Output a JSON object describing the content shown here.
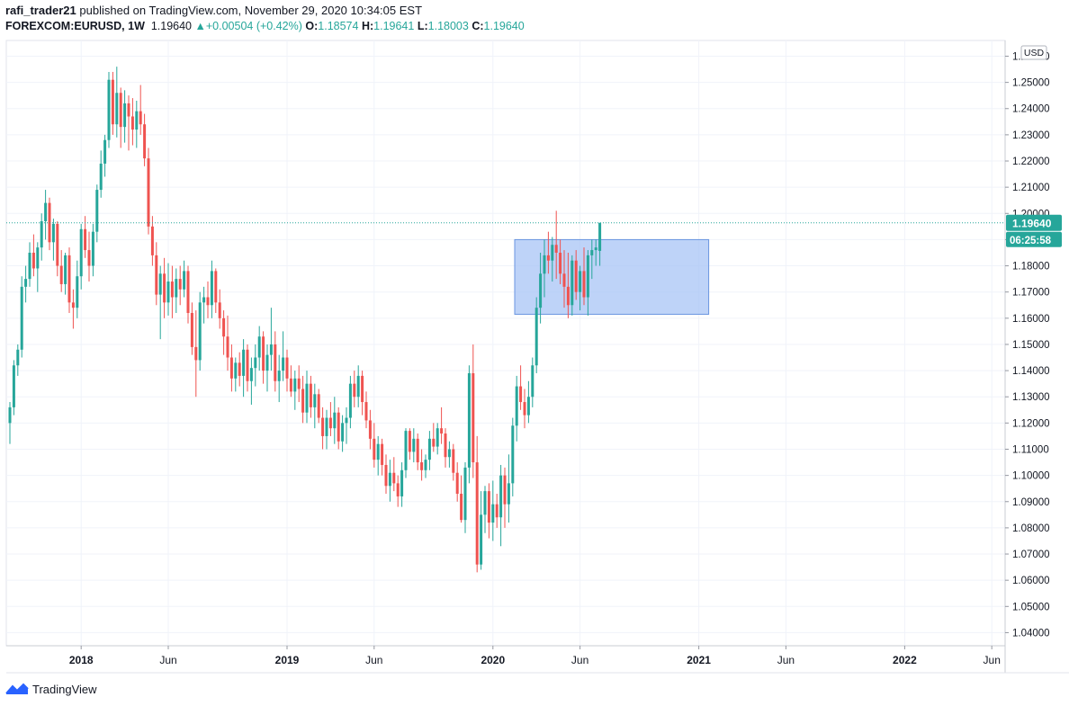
{
  "header": {
    "username": "rafi_trader21",
    "published_text": "published on TradingView.com, November 29, 2020 10:34:05 EST",
    "symbol": "FOREXCOM:EURUSD, 1W",
    "last_price": "1.19640",
    "change": "+0.00504 (+0.42%)",
    "o_label": "O:",
    "o_value": "1.18574",
    "h_label": "H:",
    "h_value": "1.19641",
    "l_label": "L:",
    "l_value": "1.18003",
    "c_label": "C:",
    "c_value": "1.19640"
  },
  "footer": {
    "brand": "TradingView"
  },
  "colors": {
    "up": "#26a69a",
    "down": "#ef5350",
    "zone": "#a8c4f5",
    "zone_border": "#6a95e0",
    "price_tag": "#26a69a"
  },
  "chart_data": {
    "type": "candlestick",
    "currency_label": "USD",
    "last_price_tag": "1.19640",
    "countdown_tag": "06:25:58",
    "ylim": [
      1.035,
      1.266
    ],
    "y_ticks": [
      "1.26000",
      "1.25000",
      "1.24000",
      "1.23000",
      "1.22000",
      "1.21000",
      "1.20000",
      "1.19000",
      "1.18000",
      "1.17000",
      "1.16000",
      "1.15000",
      "1.14000",
      "1.13000",
      "1.12000",
      "1.11000",
      "1.10000",
      "1.09000",
      "1.08000",
      "1.07000",
      "1.06000",
      "1.05000",
      "1.04000"
    ],
    "x_ticks": [
      {
        "label": "2018",
        "bold": true,
        "week": 18
      },
      {
        "label": "Jun",
        "bold": false,
        "week": 40
      },
      {
        "label": "2019",
        "bold": true,
        "week": 70
      },
      {
        "label": "Jun",
        "bold": false,
        "week": 92
      },
      {
        "label": "2020",
        "bold": true,
        "week": 122
      },
      {
        "label": "Jun",
        "bold": false,
        "week": 144
      },
      {
        "label": "2021",
        "bold": true,
        "week": 174
      },
      {
        "label": "Jun",
        "bold": false,
        "week": 196
      },
      {
        "label": "2022",
        "bold": true,
        "week": 226
      },
      {
        "label": "Jun",
        "bold": false,
        "week": 248
      }
    ],
    "zone": {
      "week_start": 127.5,
      "week_end": 176.5,
      "price_high": 1.19,
      "price_low": 1.1615
    },
    "candles": [
      [
        1.12,
        1.128,
        1.112,
        1.126
      ],
      [
        1.126,
        1.144,
        1.123,
        1.142
      ],
      [
        1.142,
        1.15,
        1.138,
        1.148
      ],
      [
        1.148,
        1.176,
        1.145,
        1.172
      ],
      [
        1.172,
        1.18,
        1.166,
        1.175
      ],
      [
        1.175,
        1.189,
        1.172,
        1.185
      ],
      [
        1.185,
        1.192,
        1.176,
        1.179
      ],
      [
        1.179,
        1.189,
        1.17,
        1.187
      ],
      [
        1.187,
        1.2,
        1.182,
        1.197
      ],
      [
        1.197,
        1.209,
        1.19,
        1.204
      ],
      [
        1.204,
        1.206,
        1.186,
        1.189
      ],
      [
        1.189,
        1.198,
        1.182,
        1.196
      ],
      [
        1.196,
        1.197,
        1.176,
        1.18
      ],
      [
        1.18,
        1.186,
        1.17,
        1.173
      ],
      [
        1.173,
        1.185,
        1.169,
        1.184
      ],
      [
        1.184,
        1.187,
        1.162,
        1.166
      ],
      [
        1.166,
        1.171,
        1.156,
        1.164
      ],
      [
        1.164,
        1.182,
        1.16,
        1.176
      ],
      [
        1.176,
        1.196,
        1.171,
        1.194
      ],
      [
        1.194,
        1.199,
        1.183,
        1.186
      ],
      [
        1.186,
        1.193,
        1.174,
        1.18
      ],
      [
        1.18,
        1.196,
        1.176,
        1.193
      ],
      [
        1.193,
        1.211,
        1.189,
        1.209
      ],
      [
        1.209,
        1.224,
        1.206,
        1.219
      ],
      [
        1.219,
        1.23,
        1.214,
        1.228
      ],
      [
        1.228,
        1.254,
        1.225,
        1.251
      ],
      [
        1.251,
        1.254,
        1.23,
        1.234
      ],
      [
        1.234,
        1.256,
        1.229,
        1.246
      ],
      [
        1.246,
        1.248,
        1.225,
        1.233
      ],
      [
        1.233,
        1.247,
        1.227,
        1.242
      ],
      [
        1.242,
        1.245,
        1.224,
        1.237
      ],
      [
        1.237,
        1.244,
        1.226,
        1.232
      ],
      [
        1.232,
        1.243,
        1.225,
        1.239
      ],
      [
        1.239,
        1.249,
        1.23,
        1.234
      ],
      [
        1.234,
        1.238,
        1.218,
        1.221
      ],
      [
        1.221,
        1.225,
        1.192,
        1.195
      ],
      [
        1.195,
        1.199,
        1.18,
        1.184
      ],
      [
        1.184,
        1.189,
        1.165,
        1.169
      ],
      [
        1.169,
        1.18,
        1.152,
        1.177
      ],
      [
        1.177,
        1.183,
        1.16,
        1.166
      ],
      [
        1.166,
        1.181,
        1.161,
        1.174
      ],
      [
        1.174,
        1.18,
        1.16,
        1.168
      ],
      [
        1.168,
        1.179,
        1.162,
        1.175
      ],
      [
        1.175,
        1.18,
        1.165,
        1.171
      ],
      [
        1.171,
        1.182,
        1.168,
        1.178
      ],
      [
        1.178,
        1.18,
        1.158,
        1.162
      ],
      [
        1.162,
        1.166,
        1.146,
        1.149
      ],
      [
        1.149,
        1.163,
        1.13,
        1.144
      ],
      [
        1.144,
        1.17,
        1.14,
        1.166
      ],
      [
        1.166,
        1.172,
        1.158,
        1.168
      ],
      [
        1.168,
        1.174,
        1.16,
        1.165
      ],
      [
        1.165,
        1.182,
        1.16,
        1.178
      ],
      [
        1.178,
        1.179,
        1.162,
        1.166
      ],
      [
        1.166,
        1.171,
        1.156,
        1.16
      ],
      [
        1.16,
        1.163,
        1.146,
        1.153
      ],
      [
        1.153,
        1.161,
        1.14,
        1.145
      ],
      [
        1.145,
        1.15,
        1.132,
        1.137
      ],
      [
        1.137,
        1.145,
        1.132,
        1.143
      ],
      [
        1.143,
        1.147,
        1.134,
        1.138
      ],
      [
        1.138,
        1.152,
        1.13,
        1.148
      ],
      [
        1.148,
        1.15,
        1.132,
        1.136
      ],
      [
        1.136,
        1.145,
        1.127,
        1.141
      ],
      [
        1.141,
        1.15,
        1.134,
        1.145
      ],
      [
        1.145,
        1.157,
        1.14,
        1.153
      ],
      [
        1.153,
        1.155,
        1.135,
        1.14
      ],
      [
        1.14,
        1.15,
        1.132,
        1.146
      ],
      [
        1.146,
        1.164,
        1.14,
        1.15
      ],
      [
        1.15,
        1.155,
        1.132,
        1.136
      ],
      [
        1.136,
        1.146,
        1.128,
        1.14
      ],
      [
        1.14,
        1.155,
        1.136,
        1.145
      ],
      [
        1.145,
        1.148,
        1.132,
        1.137
      ],
      [
        1.137,
        1.142,
        1.13,
        1.132
      ],
      [
        1.132,
        1.14,
        1.125,
        1.137
      ],
      [
        1.137,
        1.142,
        1.128,
        1.133
      ],
      [
        1.133,
        1.138,
        1.12,
        1.124
      ],
      [
        1.124,
        1.14,
        1.12,
        1.135
      ],
      [
        1.135,
        1.138,
        1.122,
        1.126
      ],
      [
        1.126,
        1.135,
        1.118,
        1.131
      ],
      [
        1.131,
        1.133,
        1.12,
        1.122
      ],
      [
        1.122,
        1.126,
        1.11,
        1.115
      ],
      [
        1.115,
        1.125,
        1.11,
        1.122
      ],
      [
        1.122,
        1.128,
        1.115,
        1.118
      ],
      [
        1.118,
        1.13,
        1.112,
        1.124
      ],
      [
        1.124,
        1.126,
        1.11,
        1.113
      ],
      [
        1.113,
        1.123,
        1.109,
        1.12
      ],
      [
        1.12,
        1.126,
        1.112,
        1.122
      ],
      [
        1.122,
        1.138,
        1.118,
        1.135
      ],
      [
        1.135,
        1.14,
        1.126,
        1.13
      ],
      [
        1.13,
        1.142,
        1.126,
        1.138
      ],
      [
        1.138,
        1.14,
        1.123,
        1.128
      ],
      [
        1.128,
        1.132,
        1.118,
        1.121
      ],
      [
        1.121,
        1.125,
        1.11,
        1.114
      ],
      [
        1.114,
        1.12,
        1.103,
        1.106
      ],
      [
        1.106,
        1.115,
        1.1,
        1.112
      ],
      [
        1.112,
        1.114,
        1.1,
        1.104
      ],
      [
        1.104,
        1.108,
        1.093,
        1.096
      ],
      [
        1.096,
        1.106,
        1.09,
        1.101
      ],
      [
        1.101,
        1.107,
        1.094,
        1.097
      ],
      [
        1.097,
        1.1,
        1.088,
        1.092
      ],
      [
        1.092,
        1.105,
        1.088,
        1.102
      ],
      [
        1.102,
        1.118,
        1.099,
        1.117
      ],
      [
        1.117,
        1.118,
        1.106,
        1.109
      ],
      [
        1.109,
        1.118,
        1.105,
        1.114
      ],
      [
        1.114,
        1.116,
        1.102,
        1.105
      ],
      [
        1.105,
        1.11,
        1.098,
        1.102
      ],
      [
        1.102,
        1.108,
        1.099,
        1.106
      ],
      [
        1.106,
        1.117,
        1.102,
        1.114
      ],
      [
        1.114,
        1.12,
        1.109,
        1.111
      ],
      [
        1.111,
        1.12,
        1.108,
        1.118
      ],
      [
        1.118,
        1.126,
        1.112,
        1.116
      ],
      [
        1.116,
        1.118,
        1.103,
        1.107
      ],
      [
        1.107,
        1.113,
        1.103,
        1.11
      ],
      [
        1.11,
        1.112,
        1.098,
        1.101
      ],
      [
        1.101,
        1.105,
        1.09,
        1.093
      ],
      [
        1.093,
        1.1,
        1.082,
        1.083
      ],
      [
        1.083,
        1.105,
        1.078,
        1.103
      ],
      [
        1.103,
        1.142,
        1.097,
        1.139
      ],
      [
        1.139,
        1.15,
        1.099,
        1.105
      ],
      [
        1.105,
        1.115,
        1.063,
        1.066
      ],
      [
        1.066,
        1.094,
        1.064,
        1.085
      ],
      [
        1.085,
        1.096,
        1.078,
        1.094
      ],
      [
        1.094,
        1.097,
        1.076,
        1.082
      ],
      [
        1.082,
        1.098,
        1.075,
        1.089
      ],
      [
        1.089,
        1.093,
        1.08,
        1.084
      ],
      [
        1.084,
        1.104,
        1.073,
        1.1
      ],
      [
        1.1,
        1.103,
        1.08,
        1.089
      ],
      [
        1.089,
        1.108,
        1.082,
        1.097
      ],
      [
        1.097,
        1.122,
        1.092,
        1.119
      ],
      [
        1.119,
        1.138,
        1.113,
        1.134
      ],
      [
        1.134,
        1.142,
        1.125,
        1.128
      ],
      [
        1.128,
        1.133,
        1.118,
        1.123
      ],
      [
        1.123,
        1.136,
        1.12,
        1.13
      ],
      [
        1.13,
        1.145,
        1.126,
        1.142
      ],
      [
        1.142,
        1.168,
        1.139,
        1.164
      ],
      [
        1.164,
        1.185,
        1.158,
        1.177
      ],
      [
        1.177,
        1.19,
        1.168,
        1.184
      ],
      [
        1.184,
        1.193,
        1.177,
        1.182
      ],
      [
        1.182,
        1.191,
        1.174,
        1.188
      ],
      [
        1.188,
        1.201,
        1.175,
        1.185
      ],
      [
        1.185,
        1.19,
        1.173,
        1.177
      ],
      [
        1.177,
        1.186,
        1.164,
        1.172
      ],
      [
        1.172,
        1.185,
        1.16,
        1.165
      ],
      [
        1.165,
        1.184,
        1.161,
        1.182
      ],
      [
        1.182,
        1.186,
        1.167,
        1.17
      ],
      [
        1.17,
        1.18,
        1.163,
        1.178
      ],
      [
        1.178,
        1.187,
        1.165,
        1.168
      ],
      [
        1.168,
        1.186,
        1.161,
        1.184
      ],
      [
        1.184,
        1.19,
        1.175,
        1.186
      ],
      [
        1.186,
        1.19,
        1.18,
        1.187
      ],
      [
        1.1857,
        1.1964,
        1.18,
        1.1964
      ]
    ]
  }
}
